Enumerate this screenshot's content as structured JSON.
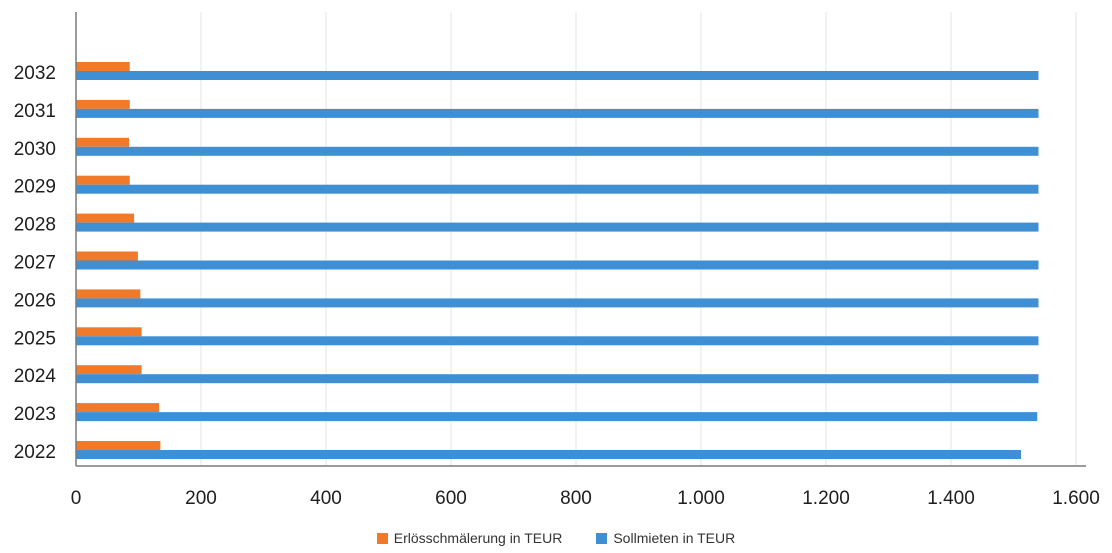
{
  "chart_data": {
    "type": "bar",
    "orientation": "horizontal",
    "categories": [
      "2022",
      "2023",
      "2024",
      "2025",
      "2026",
      "2027",
      "2028",
      "2029",
      "2030",
      "2031",
      "2032"
    ],
    "series": [
      {
        "name": "Erlösschmälerung in TEUR",
        "color": "#f07a2a",
        "values": [
          135,
          133,
          105,
          105,
          103,
          99,
          93,
          86,
          85,
          86,
          86
        ]
      },
      {
        "name": "Sollmieten in TEUR",
        "color": "#3f8fd4",
        "values": [
          1512,
          1538,
          1540,
          1540,
          1540,
          1540,
          1540,
          1540,
          1540,
          1540,
          1540
        ]
      }
    ],
    "xlim": [
      0,
      1600
    ],
    "xticks": [
      0,
      200,
      400,
      600,
      800,
      1000,
      1200,
      1400,
      1600
    ],
    "xtick_labels": [
      "0",
      "200",
      "400",
      "600",
      "800",
      "1.000",
      "1.200",
      "1.400",
      "1.600"
    ],
    "grid": "vertical",
    "legend_position": "bottom",
    "title": "",
    "xlabel": "",
    "ylabel": ""
  }
}
